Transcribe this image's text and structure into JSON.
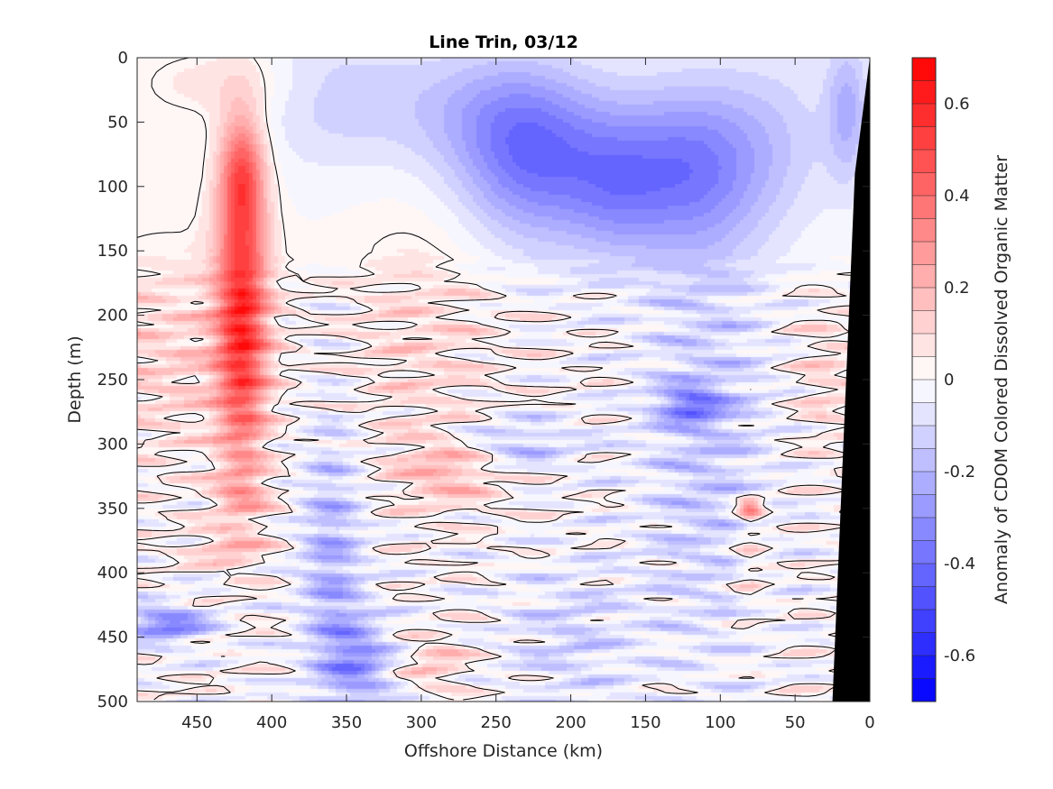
{
  "chart_data": {
    "type": "heatmap",
    "title": "Line Trin, 03/12",
    "xlabel": "Offshore Distance (km)",
    "ylabel": "Depth (m)",
    "colorbar_label": "Anomaly of CDOM Colored Dissolved Organic Matter",
    "xlim": [
      490,
      0
    ],
    "ylim": [
      0,
      500
    ],
    "clim": [
      -0.7,
      0.7
    ],
    "x_reversed": true,
    "y_reversed": true,
    "x_ticks": [
      450,
      400,
      350,
      300,
      250,
      200,
      150,
      100,
      50,
      0
    ],
    "x_tick_labels": [
      "450",
      "400",
      "350",
      "300",
      "250",
      "200",
      "150",
      "100",
      "50",
      "0"
    ],
    "y_ticks": [
      0,
      50,
      100,
      150,
      200,
      250,
      300,
      350,
      400,
      450,
      500
    ],
    "y_tick_labels": [
      "0",
      "50",
      "100",
      "150",
      "200",
      "250",
      "300",
      "350",
      "400",
      "450",
      "500"
    ],
    "colorbar_ticks": [
      0.6,
      0.4,
      0.2,
      0,
      -0.2,
      -0.4,
      -0.6
    ],
    "colorbar_tick_labels": [
      "0.6",
      "0.4",
      "0.2",
      "0",
      "-0.2",
      "-0.4",
      "-0.6"
    ],
    "colormap": {
      "low": "#0000ff",
      "mid": "#ffffff",
      "high": "#ff0000"
    },
    "contour_level": 0,
    "contour_color": "#000000",
    "bathymetry_color": "#000000",
    "bathymetry": {
      "distance_km": [
        0,
        10,
        25,
        25
      ],
      "depth_m": [
        0,
        90,
        500,
        500
      ]
    },
    "features": [
      {
        "x": 420,
        "y": 200,
        "sx": 12,
        "sy": 85,
        "v": 0.55
      },
      {
        "x": 420,
        "y": 90,
        "sx": 10,
        "sy": 30,
        "v": 0.3
      },
      {
        "x": 470,
        "y": 230,
        "sx": 45,
        "sy": 60,
        "v": 0.12
      },
      {
        "x": 430,
        "y": 20,
        "sx": 40,
        "sy": 20,
        "v": 0.08
      },
      {
        "x": 225,
        "y": 80,
        "sx": 35,
        "sy": 45,
        "v": -0.35
      },
      {
        "x": 120,
        "y": 85,
        "sx": 35,
        "sy": 45,
        "v": -0.33
      },
      {
        "x": 170,
        "y": 100,
        "sx": 25,
        "sy": 40,
        "v": -0.2
      },
      {
        "x": 260,
        "y": 40,
        "sx": 45,
        "sy": 35,
        "v": -0.15
      },
      {
        "x": 360,
        "y": 30,
        "sx": 40,
        "sy": 40,
        "v": -0.12
      },
      {
        "x": 60,
        "y": 60,
        "sx": 30,
        "sy": 50,
        "v": -0.1
      },
      {
        "x": 15,
        "y": 40,
        "sx": 10,
        "sy": 40,
        "v": -0.2
      },
      {
        "x": 300,
        "y": 220,
        "sx": 35,
        "sy": 70,
        "v": 0.1
      },
      {
        "x": 280,
        "y": 320,
        "sx": 25,
        "sy": 20,
        "v": 0.2
      },
      {
        "x": 290,
        "y": 470,
        "sx": 15,
        "sy": 15,
        "v": 0.15
      },
      {
        "x": 360,
        "y": 400,
        "sx": 15,
        "sy": 80,
        "v": -0.22
      },
      {
        "x": 470,
        "y": 440,
        "sx": 20,
        "sy": 10,
        "v": -0.35
      },
      {
        "x": 110,
        "y": 300,
        "sx": 30,
        "sy": 120,
        "v": -0.15
      },
      {
        "x": 120,
        "y": 270,
        "sx": 15,
        "sy": 10,
        "v": -0.3
      },
      {
        "x": 80,
        "y": 350,
        "sx": 6,
        "sy": 6,
        "v": 0.35
      },
      {
        "x": 80,
        "y": 390,
        "sx": 8,
        "sy": 30,
        "v": 0.12
      },
      {
        "x": 30,
        "y": 250,
        "sx": 15,
        "sy": 40,
        "v": 0.1
      },
      {
        "x": 200,
        "y": 450,
        "sx": 30,
        "sy": 40,
        "v": -0.12
      },
      {
        "x": 420,
        "y": 340,
        "sx": 15,
        "sy": 10,
        "v": 0.15
      },
      {
        "x": 430,
        "y": 380,
        "sx": 20,
        "sy": 10,
        "v": 0.15
      },
      {
        "x": 240,
        "y": 300,
        "sx": 30,
        "sy": 15,
        "v": -0.18
      },
      {
        "x": 340,
        "y": 470,
        "sx": 15,
        "sy": 25,
        "v": -0.25
      }
    ]
  }
}
